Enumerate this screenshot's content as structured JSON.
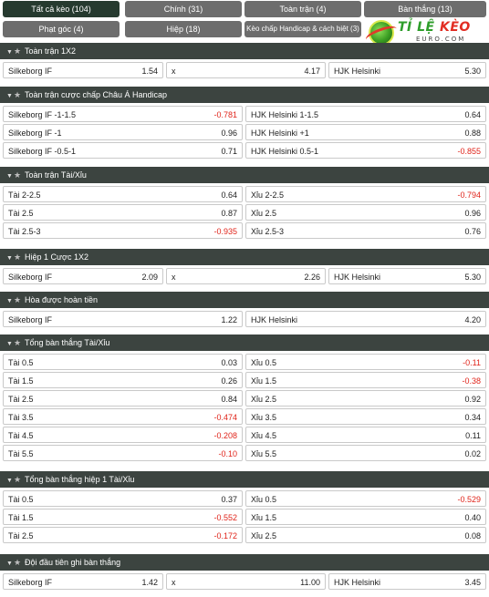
{
  "tabs": [
    {
      "label": "Tất cả kèo (104)",
      "active": true
    },
    {
      "label": "Chính (31)"
    },
    {
      "label": "Toàn trận (4)"
    },
    {
      "label": "Bàn thắng (13)"
    },
    {
      "label": "Phạt góc (4)"
    },
    {
      "label": "Hiệp (18)"
    },
    {
      "label": "Kèo chấp Handicap & cách biệt (3)"
    }
  ],
  "logo": {
    "brand_a": "TỈ LỆ ",
    "brand_b": "KÈO",
    "sub": "EURO.COM"
  },
  "sections": [
    {
      "title": "Toàn trận 1X2",
      "layout": "three",
      "rows": [
        [
          {
            "label": "Silkeborg IF",
            "odd": "1.54"
          },
          {
            "label": "x",
            "odd": "4.17"
          },
          {
            "label": "HJK Helsinki",
            "odd": "5.30"
          }
        ]
      ]
    },
    {
      "title": "Toàn trận cược chấp Châu Á Handicap",
      "layout": "two",
      "rows": [
        [
          {
            "label": "Silkeborg IF -1-1.5",
            "odd": "-0.781",
            "neg": true
          },
          {
            "label": "HJK Helsinki 1-1.5",
            "odd": "0.64"
          }
        ],
        [
          {
            "label": "Silkeborg IF -1",
            "odd": "0.96"
          },
          {
            "label": "HJK Helsinki +1",
            "odd": "0.88"
          }
        ],
        [
          {
            "label": "Silkeborg IF -0.5-1",
            "odd": "0.71"
          },
          {
            "label": "HJK Helsinki 0.5-1",
            "odd": "-0.855",
            "neg": true
          }
        ]
      ]
    },
    {
      "title": "Toàn trận Tài/Xỉu",
      "layout": "two",
      "rows": [
        [
          {
            "label": "Tài 2-2.5",
            "odd": "0.64"
          },
          {
            "label": "Xỉu 2-2.5",
            "odd": "-0.794",
            "neg": true
          }
        ],
        [
          {
            "label": "Tài 2.5",
            "odd": "0.87"
          },
          {
            "label": "Xỉu 2.5",
            "odd": "0.96"
          }
        ],
        [
          {
            "label": "Tài 2.5-3",
            "odd": "-0.935",
            "neg": true
          },
          {
            "label": "Xỉu 2.5-3",
            "odd": "0.76"
          }
        ]
      ]
    },
    {
      "title": "Hiệp 1 Cược 1X2",
      "layout": "three",
      "rows": [
        [
          {
            "label": "Silkeborg IF",
            "odd": "2.09"
          },
          {
            "label": "x",
            "odd": "2.26"
          },
          {
            "label": "HJK Helsinki",
            "odd": "5.30"
          }
        ]
      ]
    },
    {
      "title": "Hòa được hoàn tiền",
      "layout": "two",
      "rows": [
        [
          {
            "label": "Silkeborg IF",
            "odd": "1.22"
          },
          {
            "label": "HJK Helsinki",
            "odd": "4.20"
          }
        ]
      ]
    },
    {
      "title": "Tổng bàn thắng Tài/Xỉu",
      "layout": "two",
      "rows": [
        [
          {
            "label": "Tài 0.5",
            "odd": "0.03"
          },
          {
            "label": "Xỉu 0.5",
            "odd": "-0.11",
            "neg": true
          }
        ],
        [
          {
            "label": "Tài 1.5",
            "odd": "0.26"
          },
          {
            "label": "Xỉu 1.5",
            "odd": "-0.38",
            "neg": true
          }
        ],
        [
          {
            "label": "Tài 2.5",
            "odd": "0.84"
          },
          {
            "label": "Xỉu 2.5",
            "odd": "0.92"
          }
        ],
        [
          {
            "label": "Tài 3.5",
            "odd": "-0.474",
            "neg": true
          },
          {
            "label": "Xỉu 3.5",
            "odd": "0.34"
          }
        ],
        [
          {
            "label": "Tài 4.5",
            "odd": "-0.208",
            "neg": true
          },
          {
            "label": "Xỉu 4.5",
            "odd": "0.11"
          }
        ],
        [
          {
            "label": "Tài 5.5",
            "odd": "-0.10",
            "neg": true
          },
          {
            "label": "Xỉu 5.5",
            "odd": "0.02"
          }
        ]
      ]
    },
    {
      "title": "Tổng bàn thắng hiệp 1 Tài/Xỉu",
      "layout": "two",
      "rows": [
        [
          {
            "label": "Tài 0.5",
            "odd": "0.37"
          },
          {
            "label": "Xỉu 0.5",
            "odd": "-0.529",
            "neg": true
          }
        ],
        [
          {
            "label": "Tài 1.5",
            "odd": "-0.552",
            "neg": true
          },
          {
            "label": "Xỉu 1.5",
            "odd": "0.40"
          }
        ],
        [
          {
            "label": "Tài 2.5",
            "odd": "-0.172",
            "neg": true
          },
          {
            "label": "Xỉu 2.5",
            "odd": "0.08"
          }
        ]
      ]
    },
    {
      "title": "Đội đầu tiên ghi bàn thắng",
      "layout": "three",
      "rows": [
        [
          {
            "label": "Silkeborg IF",
            "odd": "1.42"
          },
          {
            "label": "x",
            "odd": "11.00"
          },
          {
            "label": "HJK Helsinki",
            "odd": "3.45"
          }
        ]
      ]
    }
  ],
  "colors": {
    "header_bg": "#3c4440",
    "tab_bg": "#6d6d6d",
    "tab_active_bg": "#263a2f",
    "negative_odd": "#e0241a"
  },
  "icons": {
    "collapse": "caret-down-icon",
    "favorite": "star-icon"
  }
}
